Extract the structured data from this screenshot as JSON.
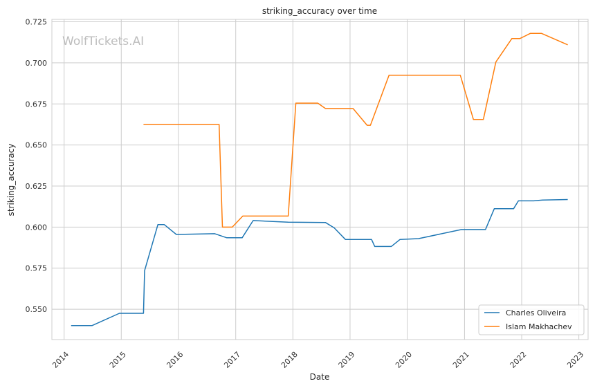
{
  "watermark": "WolfTickets.AI",
  "chart_data": {
    "type": "line",
    "title": "striking_accuracy over time",
    "xlabel": "Date",
    "ylabel": "striking_accuracy",
    "x_type": "date",
    "xlim": [
      "2013-10-15",
      "2023-03-01"
    ],
    "ylim": [
      0.5315,
      0.7265
    ],
    "x_ticks": [
      "2014-01-01",
      "2015-01-01",
      "2016-01-01",
      "2017-01-01",
      "2018-01-01",
      "2019-01-01",
      "2020-01-01",
      "2021-01-01",
      "2022-01-01",
      "2023-01-01"
    ],
    "x_tick_labels": [
      "2014",
      "2015",
      "2016",
      "2017",
      "2018",
      "2019",
      "2020",
      "2021",
      "2022",
      "2023"
    ],
    "y_ticks": [
      0.55,
      0.575,
      0.6,
      0.625,
      0.65,
      0.675,
      0.7,
      0.725
    ],
    "y_tick_labels": [
      "0.550",
      "0.575",
      "0.600",
      "0.625",
      "0.650",
      "0.675",
      "0.700",
      "0.725"
    ],
    "grid": true,
    "legend_position": "bottom-right",
    "series": [
      {
        "name": "Charles Oliveira",
        "color": "#1f77b4",
        "points": [
          [
            "2014-02-15",
            0.54
          ],
          [
            "2014-06-28",
            0.54
          ],
          [
            "2014-12-20",
            0.5475
          ],
          [
            "2015-05-23",
            0.5475
          ],
          [
            "2015-05-30",
            0.5735
          ],
          [
            "2015-08-23",
            0.6015
          ],
          [
            "2015-10-03",
            0.6015
          ],
          [
            "2015-12-19",
            0.5955
          ],
          [
            "2016-08-20",
            0.596
          ],
          [
            "2016-11-05",
            0.5935
          ],
          [
            "2017-02-11",
            0.5935
          ],
          [
            "2017-04-22",
            0.604
          ],
          [
            "2017-12-02",
            0.603
          ],
          [
            "2018-07-28",
            0.6028
          ],
          [
            "2018-09-22",
            0.5995
          ],
          [
            "2018-12-02",
            0.5925
          ],
          [
            "2019-05-18",
            0.5925
          ],
          [
            "2019-06-08",
            0.5882
          ],
          [
            "2019-09-21",
            0.5882
          ],
          [
            "2019-11-16",
            0.5925
          ],
          [
            "2020-03-14",
            0.593
          ],
          [
            "2020-12-12",
            0.5985
          ],
          [
            "2021-05-15",
            0.5985
          ],
          [
            "2021-07-10",
            0.6112
          ],
          [
            "2021-11-10",
            0.6112
          ],
          [
            "2021-12-11",
            0.616
          ],
          [
            "2022-03-19",
            0.616
          ],
          [
            "2022-05-14",
            0.6165
          ],
          [
            "2022-10-22",
            0.6168
          ]
        ]
      },
      {
        "name": "Islam Makhachev",
        "color": "#ff7f0e",
        "points": [
          [
            "2015-05-23",
            0.6625
          ],
          [
            "2016-09-17",
            0.6625
          ],
          [
            "2016-10-08",
            0.6
          ],
          [
            "2016-12-10",
            0.6
          ],
          [
            "2017-02-15",
            0.6067
          ],
          [
            "2017-12-02",
            0.6067
          ],
          [
            "2018-01-20",
            0.6755
          ],
          [
            "2018-06-09",
            0.6755
          ],
          [
            "2018-07-28",
            0.6722
          ],
          [
            "2019-01-20",
            0.6722
          ],
          [
            "2019-04-20",
            0.662
          ],
          [
            "2019-05-11",
            0.662
          ],
          [
            "2019-09-07",
            0.6925
          ],
          [
            "2020-12-05",
            0.6925
          ],
          [
            "2021-02-27",
            0.6655
          ],
          [
            "2021-05-01",
            0.6655
          ],
          [
            "2021-07-20",
            0.7005
          ],
          [
            "2021-10-30",
            0.7148
          ],
          [
            "2021-12-20",
            0.7148
          ],
          [
            "2022-02-26",
            0.718
          ],
          [
            "2022-05-07",
            0.718
          ],
          [
            "2022-10-22",
            0.711
          ]
        ]
      }
    ]
  }
}
